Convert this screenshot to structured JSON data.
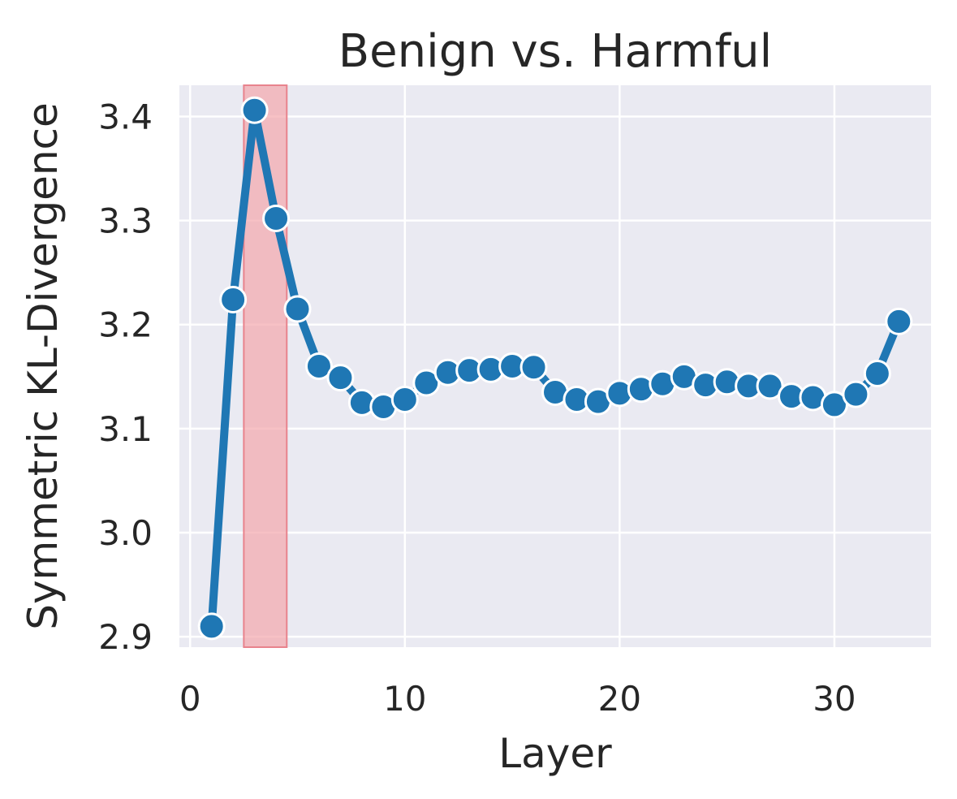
{
  "chart_data": {
    "type": "line",
    "title": "Benign vs. Harmful",
    "xlabel": "Layer",
    "ylabel": "Symmetric KL-Divergence",
    "xlim": [
      -0.5,
      34.5
    ],
    "ylim": [
      2.89,
      3.43
    ],
    "xticks": [
      0,
      10,
      20,
      30
    ],
    "yticks": [
      2.9,
      3.0,
      3.1,
      3.2,
      3.3,
      3.4
    ],
    "xtick_labels": [
      "0",
      "10",
      "20",
      "30"
    ],
    "ytick_labels": [
      "2.9",
      "3.0",
      "3.1",
      "3.2",
      "3.3",
      "3.4"
    ],
    "grid": true,
    "highlight_span": {
      "x_start": 2.5,
      "x_end": 4.5,
      "color": "#f4a6ad"
    },
    "series": [
      {
        "color": "#1f77b4",
        "marker": "circle",
        "x": [
          1,
          2,
          3,
          4,
          5,
          6,
          7,
          8,
          9,
          10,
          11,
          12,
          13,
          14,
          15,
          16,
          17,
          18,
          19,
          20,
          21,
          22,
          23,
          24,
          25,
          26,
          27,
          28,
          29,
          30,
          31,
          32,
          33
        ],
        "y": [
          2.91,
          3.224,
          3.406,
          3.302,
          3.215,
          3.16,
          3.149,
          3.125,
          3.121,
          3.128,
          3.144,
          3.154,
          3.156,
          3.157,
          3.16,
          3.159,
          3.135,
          3.128,
          3.126,
          3.134,
          3.138,
          3.143,
          3.15,
          3.142,
          3.145,
          3.141,
          3.141,
          3.131,
          3.13,
          3.123,
          3.133,
          3.153,
          3.203
        ]
      }
    ]
  },
  "colors": {
    "plot_background": "#eaeaf2",
    "grid": "#ffffff",
    "text": "#262626"
  }
}
